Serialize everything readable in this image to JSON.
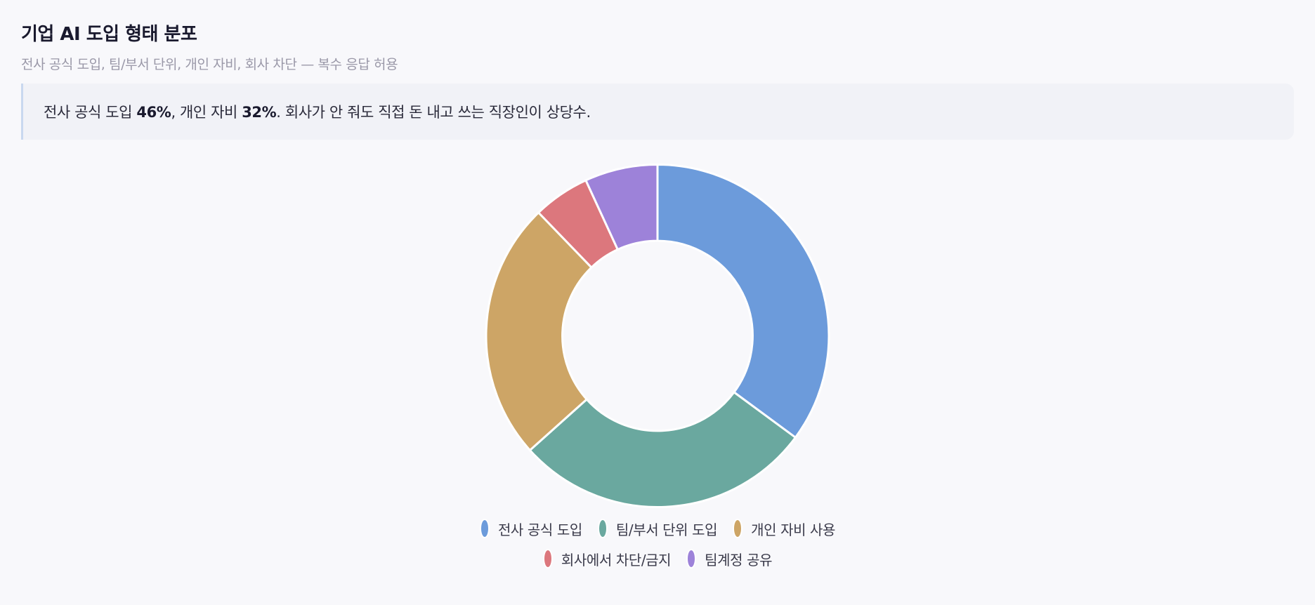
{
  "header": {
    "title": "기업 AI 도입 형태 분포",
    "subtitle": "전사 공식 도입, 팀/부서 단위, 개인 자비, 회사 차단 — 복수 응답 허용"
  },
  "callout": {
    "part1": "전사 공식 도입 ",
    "value1": "46%",
    "part2": ", 개인 자비 ",
    "value2": "32%",
    "part3": ". 회사가 안 줘도 직접 돈 내고 쓰는 직장인이 상당수."
  },
  "colors": {
    "background": "#f8f8fb",
    "callout_bg": "#f1f2f7",
    "callout_border": "#c9d8ef",
    "slice_stroke": "#ffffff"
  },
  "chart_data": {
    "type": "pie",
    "variant": "donut",
    "title": "기업 AI 도입 형태 분포",
    "subtitle": "전사 공식 도입, 팀/부서 단위, 개인 자비, 회사 차단 — 복수 응답 허용",
    "unit": "%",
    "categories": [
      "전사 공식 도입",
      "팀/부서 단위 도입",
      "개인 자비 사용",
      "회사에서 차단/금지",
      "팀계정 공유"
    ],
    "values": [
      46,
      37,
      32,
      7,
      9
    ],
    "colors": [
      "#6c9bdb",
      "#6aa89f",
      "#cda566",
      "#dc777d",
      "#9d82d9"
    ],
    "start_angle_deg": 0,
    "direction": "clockwise",
    "inner_radius_ratio": 0.555,
    "legend_position": "bottom",
    "data_labels": false
  },
  "legend": {
    "rows": [
      [
        {
          "label": "전사 공식 도입",
          "color": "#6c9bdb"
        },
        {
          "label": "팀/부서 단위 도입",
          "color": "#6aa89f"
        },
        {
          "label": "개인 자비 사용",
          "color": "#cda566"
        }
      ],
      [
        {
          "label": "회사에서 차단/금지",
          "color": "#dc777d"
        },
        {
          "label": "팀계정 공유",
          "color": "#9d82d9"
        }
      ]
    ]
  }
}
